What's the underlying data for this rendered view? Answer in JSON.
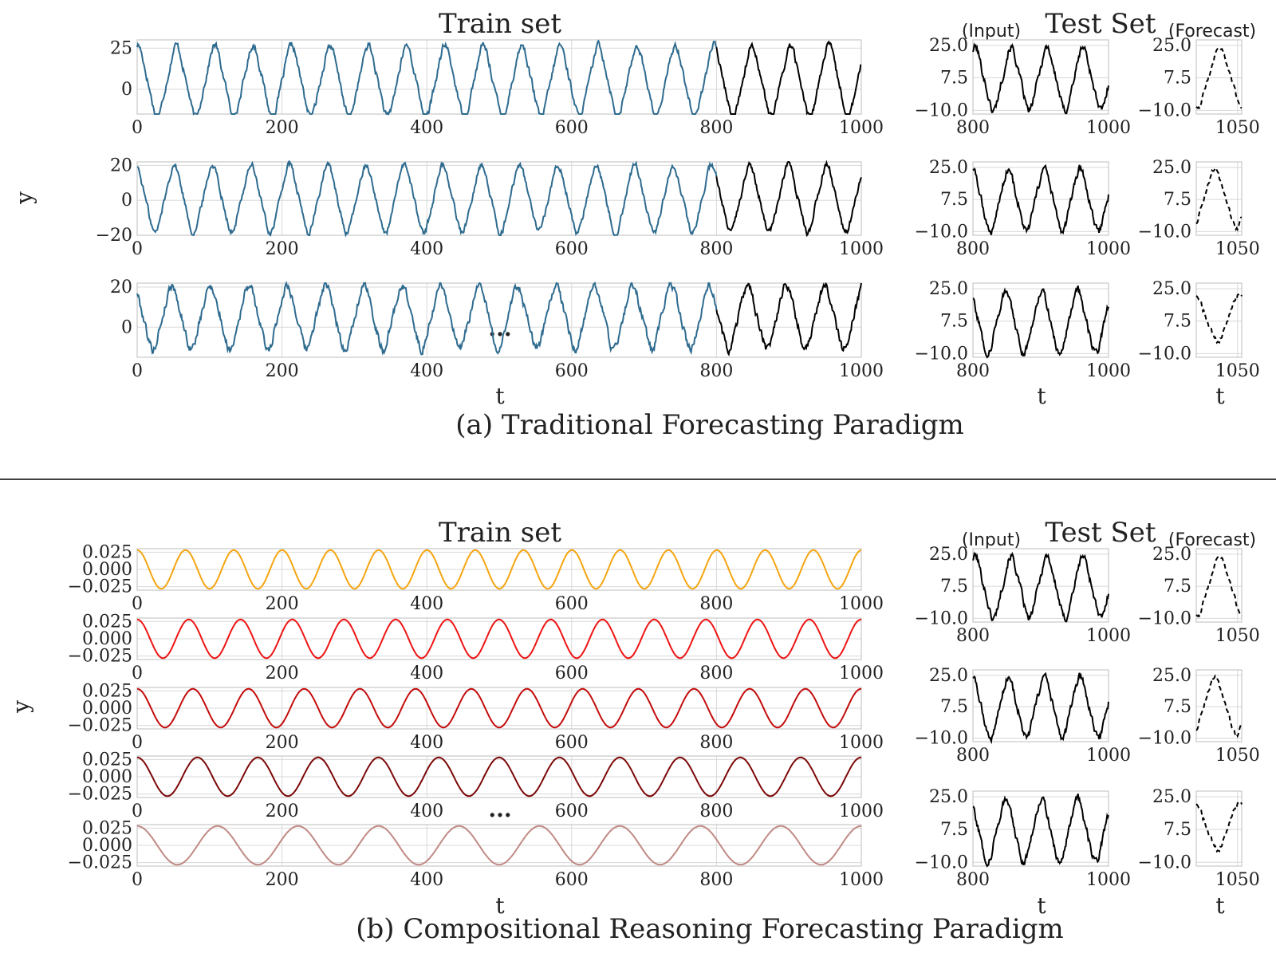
{
  "chart_data": [
    {
      "type": "line",
      "panel": "a",
      "caption": "(a) Traditional Forecasting Paradigm",
      "train_title": "Train set",
      "test_title": "Test Set",
      "input_label": "(Input)",
      "forecast_label": "(Forecast)",
      "ylabel": "y",
      "xlabel": "t",
      "ellipsis": "...",
      "train": [
        {
          "xlim": [
            0,
            1000
          ],
          "ylim": [
            -15,
            30
          ],
          "yticks": [
            0,
            25
          ],
          "xticks": [
            0,
            200,
            400,
            600,
            800,
            1000
          ],
          "period": 53,
          "amplitude": 19,
          "offset": 5,
          "noise": 3.5,
          "history_end": 800,
          "history_color": "#2e6b8f",
          "recent_color": "#000000"
        },
        {
          "xlim": [
            0,
            1000
          ],
          "ylim": [
            -20,
            22
          ],
          "yticks": [
            -20,
            0,
            20
          ],
          "xticks": [
            0,
            200,
            400,
            600,
            800,
            1000
          ],
          "period": 53,
          "amplitude": 17,
          "offset": 1,
          "noise": 3.0,
          "history_end": 800,
          "history_color": "#2e6b8f",
          "recent_color": "#000000"
        },
        {
          "xlim": [
            0,
            1000
          ],
          "ylim": [
            -15,
            22
          ],
          "yticks": [
            0,
            20
          ],
          "xticks": [
            0,
            200,
            400,
            600,
            800,
            1000
          ],
          "period": 53,
          "amplitude": 14,
          "offset": 5,
          "noise": 3.5,
          "history_end": 800,
          "history_color": "#2e6b8f",
          "recent_color": "#000000"
        }
      ],
      "test_input": [
        {
          "xlim": [
            800,
            1000
          ],
          "ylim": [
            -12,
            28
          ],
          "yticks": [
            -10.0,
            7.5,
            25.0
          ],
          "xticks": [
            800,
            1000
          ]
        },
        {
          "xlim": [
            800,
            1000
          ],
          "ylim": [
            -12,
            28
          ],
          "yticks": [
            -10.0,
            7.5,
            25.0
          ],
          "xticks": [
            800,
            1000
          ]
        },
        {
          "xlim": [
            800,
            1000
          ],
          "ylim": [
            -12,
            28
          ],
          "yticks": [
            -10.0,
            7.5,
            25.0
          ],
          "xticks": [
            800,
            1000
          ]
        }
      ],
      "test_forecast": [
        {
          "xlim": [
            1000,
            1055
          ],
          "ylim": [
            -12,
            28
          ],
          "yticks": [
            -10.0,
            7.5,
            25.0
          ],
          "xticks": [
            1050
          ]
        },
        {
          "xlim": [
            1000,
            1055
          ],
          "ylim": [
            -12,
            28
          ],
          "yticks": [
            -10.0,
            7.5,
            25.0
          ],
          "xticks": [
            1050
          ]
        },
        {
          "xlim": [
            1000,
            1055
          ],
          "ylim": [
            -12,
            28
          ],
          "yticks": [
            -10.0,
            7.5,
            25.0
          ],
          "xticks": [
            1050
          ]
        }
      ]
    },
    {
      "type": "line",
      "panel": "b",
      "caption": "(b) Compositional Reasoning Forecasting Paradigm",
      "train_title": "Train set",
      "test_title": "Test Set",
      "input_label": "(Input)",
      "forecast_label": "(Forecast)",
      "ylabel": "y",
      "xlabel": "t",
      "ellipsis": "...",
      "train": [
        {
          "xlim": [
            0,
            1000
          ],
          "ylim": [
            -0.03,
            0.03
          ],
          "yticks": [
            -0.025,
            0.0,
            0.025
          ],
          "xticks": [
            0,
            200,
            400,
            600,
            800,
            1000
          ],
          "period": 66.7,
          "amplitude": 0.028,
          "color": "#f5a511"
        },
        {
          "xlim": [
            0,
            1000
          ],
          "ylim": [
            -0.03,
            0.03
          ],
          "yticks": [
            -0.025,
            0.0,
            0.025
          ],
          "xticks": [
            0,
            200,
            400,
            600,
            800,
            1000
          ],
          "period": 71.4,
          "amplitude": 0.028,
          "color": "#ee1414"
        },
        {
          "xlim": [
            0,
            1000
          ],
          "ylim": [
            -0.03,
            0.03
          ],
          "yticks": [
            -0.025,
            0.0,
            0.025
          ],
          "xticks": [
            0,
            200,
            400,
            600,
            800,
            1000
          ],
          "period": 76.9,
          "amplitude": 0.028,
          "color": "#c40c0c"
        },
        {
          "xlim": [
            0,
            1000
          ],
          "ylim": [
            -0.03,
            0.03
          ],
          "yticks": [
            -0.025,
            0.0,
            0.025
          ],
          "xticks": [
            0,
            200,
            400,
            600,
            800,
            1000
          ],
          "period": 83.3,
          "amplitude": 0.028,
          "color": "#7c0808"
        },
        {
          "xlim": [
            0,
            1000
          ],
          "ylim": [
            -0.03,
            0.03
          ],
          "yticks": [
            -0.025,
            0.0,
            0.025
          ],
          "xticks": [
            0,
            200,
            400,
            600,
            800,
            1000
          ],
          "period": 111.1,
          "amplitude": 0.028,
          "color": "#c08a85"
        }
      ],
      "test_input": [
        {
          "xlim": [
            800,
            1000
          ],
          "ylim": [
            -12,
            28
          ],
          "yticks": [
            -10.0,
            7.5,
            25.0
          ],
          "xticks": [
            800,
            1000
          ]
        },
        {
          "xlim": [
            800,
            1000
          ],
          "ylim": [
            -12,
            28
          ],
          "yticks": [
            -10.0,
            7.5,
            25.0
          ],
          "xticks": [
            800,
            1000
          ]
        },
        {
          "xlim": [
            800,
            1000
          ],
          "ylim": [
            -12,
            28
          ],
          "yticks": [
            -10.0,
            7.5,
            25.0
          ],
          "xticks": [
            800,
            1000
          ]
        }
      ],
      "test_forecast": [
        {
          "xlim": [
            1000,
            1055
          ],
          "ylim": [
            -12,
            28
          ],
          "yticks": [
            -10.0,
            7.5,
            25.0
          ],
          "xticks": [
            1050
          ]
        },
        {
          "xlim": [
            1000,
            1055
          ],
          "ylim": [
            -12,
            28
          ],
          "yticks": [
            -10.0,
            7.5,
            25.0
          ],
          "xticks": [
            1050
          ]
        },
        {
          "xlim": [
            1000,
            1055
          ],
          "ylim": [
            -12,
            28
          ],
          "yticks": [
            -10.0,
            7.5,
            25.0
          ],
          "xticks": [
            1050
          ]
        }
      ]
    }
  ]
}
